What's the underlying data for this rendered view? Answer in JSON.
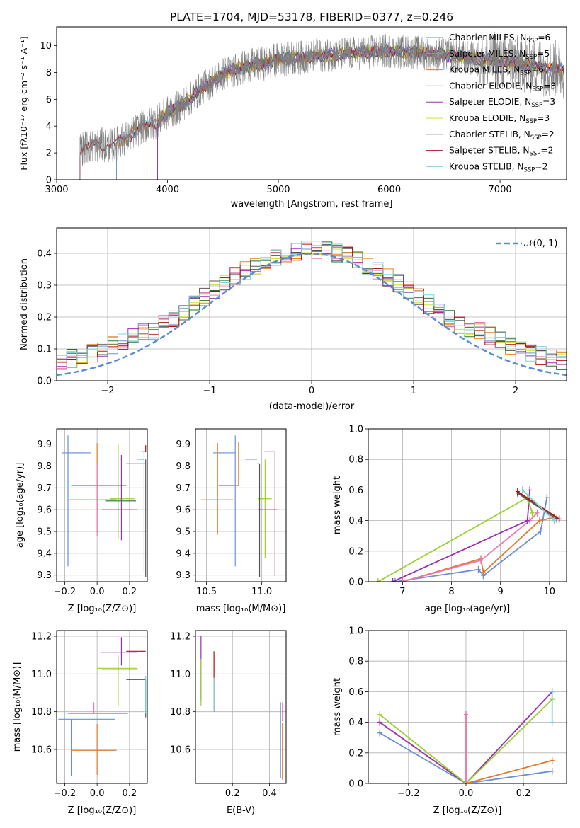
{
  "figure": {
    "title": "PLATE=1704, MJD=53178, FIBERID=0377, z=0.246"
  },
  "colors": {
    "chabrier_miles": "#6a8fd8",
    "salpeter_miles": "#e8841f",
    "kroupa_miles": "#e07a2e",
    "chabrier_elodie": "#2e6b3a",
    "salpeter_elodie": "#9b30b0",
    "kroupa_elodie": "#d4e02a",
    "chabrier_stelib": "#555555",
    "salpeter_stelib": "#b01010",
    "kroupa_stelib": "#7fd0d8",
    "pink": "#ec7bb4",
    "lightgreen": "#9bd12e",
    "gauss": "#5b8ad6",
    "grid": "#b0b0b0",
    "spectrum": "#808080"
  },
  "legend_spectrum": [
    {
      "label": "Chabrier MILES, N",
      "sub": "SSP",
      "tail": "=6",
      "color": "#6a8fd8"
    },
    {
      "label": "Salpeter MILES, N",
      "sub": "SSP",
      "tail": "=5",
      "color": "#e8841f"
    },
    {
      "label": "Kroupa MILES, N",
      "sub": "SSP",
      "tail": "=6",
      "color": "#e07a2e"
    },
    {
      "label": "Chabrier ELODIE, N",
      "sub": "SSP",
      "tail": "=3",
      "color": "#2e6b3a"
    },
    {
      "label": "Salpeter ELODIE, N",
      "sub": "SSP",
      "tail": "=3",
      "color": "#9b30b0"
    },
    {
      "label": "Kroupa ELODIE, N",
      "sub": "SSP",
      "tail": "=3",
      "color": "#d4e02a"
    },
    {
      "label": "Chabrier STELIB, N",
      "sub": "SSP",
      "tail": "=2",
      "color": "#555555"
    },
    {
      "label": "Salpeter STELIB, N",
      "sub": "SSP",
      "tail": "=2",
      "color": "#b01010"
    },
    {
      "label": "Kroupa STELIB, N",
      "sub": "SSP",
      "tail": "=2",
      "color": "#7fd0d8"
    }
  ],
  "legend_hist": {
    "label": "𝒩(0, 1)"
  },
  "chart_data": [
    {
      "id": "spectrum",
      "type": "line",
      "xlabel": "wavelength [Angstrom, rest frame]",
      "ylabel": "Flux [f",
      "ylabel_full": "Flux [fλ10⁻¹⁷ erg cm⁻² s⁻¹ A⁻¹]",
      "xlim": [
        3000,
        7600
      ],
      "ylim": [
        0,
        11.4
      ],
      "xticks": [
        3000,
        4000,
        5000,
        6000,
        7000
      ],
      "yticks": [
        0,
        2,
        4,
        6,
        8,
        10
      ],
      "continuum": {
        "x": [
          3210,
          3300,
          3400,
          3500,
          3600,
          3700,
          3800,
          3900,
          4000,
          4100,
          4200,
          4300,
          4400,
          4500,
          4600,
          4700,
          4800,
          4900,
          5000,
          5200,
          5400,
          5600,
          5800,
          6000,
          6200,
          6400,
          6600,
          6800,
          7000,
          7200,
          7400,
          7580
        ],
        "y": [
          2.3,
          2.5,
          2.6,
          2.55,
          3.0,
          3.6,
          4.0,
          4.3,
          5.0,
          5.4,
          6.0,
          6.8,
          7.3,
          7.9,
          8.2,
          8.4,
          8.6,
          8.7,
          9.0,
          9.1,
          9.3,
          9.4,
          9.5,
          9.6,
          9.5,
          9.4,
          9.2,
          9.0,
          8.9,
          8.6,
          8.4,
          8.2
        ]
      }
    },
    {
      "id": "residual-hist",
      "type": "step",
      "xlabel": "(data-model)/error",
      "ylabel": "Normed distribution",
      "xlim": [
        -2.5,
        2.5
      ],
      "ylim": [
        0,
        0.48
      ],
      "xticks": [
        -2,
        -1,
        0,
        1,
        2
      ],
      "yticks": [
        0.0,
        0.1,
        0.2,
        0.3,
        0.4
      ],
      "bin_width": 0.1
    },
    {
      "id": "age-vs-z",
      "type": "errorbar",
      "xlabel": "Z [log₁₀(Z/Z⊙)]",
      "ylabel": "age  [log₁₀(age/yr)]",
      "xlim": [
        -0.25,
        0.31
      ],
      "ylim": [
        9.27,
        9.97
      ],
      "xticks": [
        -0.2,
        0.0,
        0.2
      ],
      "yticks": [
        9.3,
        9.4,
        9.5,
        9.6,
        9.7,
        9.8,
        9.9
      ],
      "points": [
        {
          "x": -0.18,
          "xerr": [
            0.04,
            0.14
          ],
          "y": 9.86,
          "yerr": [
            0.52,
            0.08
          ],
          "color": "#6a8fd8"
        },
        {
          "x": -0.12,
          "xerr": [
            0.04,
            0.04
          ],
          "y": 9.86,
          "yerr": [
            0.0,
            0.0
          ],
          "color": "#6a8fd8"
        },
        {
          "x": 0.0,
          "xerr": [
            0.17,
            0.12
          ],
          "y": 9.645,
          "yerr": [
            0.15,
            0.26
          ],
          "color": "#e07a2e"
        },
        {
          "x": 0.0,
          "xerr": [
            0.16,
            0.18
          ],
          "y": 9.71,
          "yerr": [
            0.23,
            0.1
          ],
          "color": "#ec7bb4"
        },
        {
          "x": 0.13,
          "xerr": [
            0.05,
            0.1
          ],
          "y": 9.65,
          "yerr": [
            0.18,
            0.25
          ],
          "color": "#9bd12e"
        },
        {
          "x": 0.13,
          "xerr": [
            0.08,
            0.11
          ],
          "y": 9.64,
          "yerr": [
            0.0,
            0.0
          ],
          "color": "#2e6b3a"
        },
        {
          "x": 0.15,
          "xerr": [
            0.12,
            0.1
          ],
          "y": 9.6,
          "yerr": [
            0.14,
            0.25
          ],
          "color": "#9b30b0"
        },
        {
          "x": 0.3,
          "xerr": [
            0.12,
            0.0
          ],
          "y": 9.81,
          "yerr": [
            0.52,
            0.02
          ],
          "color": "#555555"
        },
        {
          "x": 0.3,
          "xerr": [
            0.03,
            0.0
          ],
          "y": 9.865,
          "yerr": [
            0.0,
            0.03
          ],
          "color": "#b01010"
        },
        {
          "x": 0.29,
          "xerr": [
            0.04,
            0.0
          ],
          "y": 9.83,
          "yerr": [
            0.52,
            0.04
          ],
          "color": "#7fd0d8"
        }
      ]
    },
    {
      "id": "age-vs-mass",
      "type": "errorbar",
      "xlabel": "mass [log₁₀(M/M⊙)]",
      "xlim": [
        10.4,
        11.22
      ],
      "ylim": [
        9.27,
        9.97
      ],
      "xticks": [
        10.5,
        11.0
      ],
      "yticks": [
        9.3,
        9.4,
        9.5,
        9.6,
        9.7,
        9.8,
        9.9
      ],
      "points": [
        {
          "x": 10.76,
          "xerr": [
            0.2,
            0.0
          ],
          "y": 9.86,
          "yerr": [
            0.52,
            0.08
          ],
          "color": "#6a8fd8"
        },
        {
          "x": 10.6,
          "xerr": [
            0.15,
            0.14
          ],
          "y": 9.645,
          "yerr": [
            0.16,
            0.26
          ],
          "color": "#e07a2e"
        },
        {
          "x": 10.79,
          "xerr": [
            0.0,
            0.0
          ],
          "y": 9.71,
          "yerr": [
            0.0,
            0.2
          ],
          "color": "#e07a2e"
        },
        {
          "x": 10.79,
          "xerr": [
            0.18,
            0.0
          ],
          "y": 9.71,
          "yerr": [
            0.0,
            0.0
          ],
          "color": "#ec7bb4"
        },
        {
          "x": 10.96,
          "xerr": [
            0.11,
            0.0
          ],
          "y": 9.83,
          "yerr": [
            0.0,
            0.0
          ],
          "color": "#7fd0d8"
        },
        {
          "x": 11.03,
          "xerr": [
            0.06,
            0.06
          ],
          "y": 9.65,
          "yerr": [
            0.27,
            0.18
          ],
          "color": "#9bd12e"
        },
        {
          "x": 11.1,
          "xerr": [
            0.13,
            0.04
          ],
          "y": 9.6,
          "yerr": [
            0.0,
            0.0
          ],
          "color": "#9b30b0"
        },
        {
          "x": 10.98,
          "xerr": [
            0.02,
            0.0
          ],
          "y": 9.81,
          "yerr": [
            0.52,
            0.0
          ],
          "color": "#555555"
        },
        {
          "x": 11.12,
          "xerr": [
            0.1,
            0.0
          ],
          "y": 9.865,
          "yerr": [
            0.57,
            0.0
          ],
          "color": "#b01010"
        }
      ]
    },
    {
      "id": "mass-weight-vs-age",
      "type": "line",
      "xlabel": "age  [log₁₀(age/yr)]",
      "ylabel": "mass weight",
      "xlim": [
        6.3,
        10.35
      ],
      "ylim": [
        0,
        1.0
      ],
      "xticks": [
        7,
        8,
        9,
        10
      ],
      "yticks": [
        0.0,
        0.2,
        0.4,
        0.6,
        0.8,
        1.0
      ],
      "series": [
        {
          "color": "#6a8fd8",
          "x": [
            6.85,
            8.55,
            8.65,
            9.82,
            9.95
          ],
          "y": [
            0.0,
            0.08,
            0.04,
            0.33,
            0.55
          ]
        },
        {
          "color": "#e07a2e",
          "x": [
            7.0,
            8.6,
            8.65,
            9.8,
            10.1
          ],
          "y": [
            0.0,
            0.15,
            0.06,
            0.4,
            0.42
          ]
        },
        {
          "color": "#ec7bb4",
          "x": [
            7.0,
            8.6,
            9.6,
            9.75
          ],
          "y": [
            0.0,
            0.14,
            0.4,
            0.45
          ]
        },
        {
          "color": "#9b30b0",
          "x": [
            6.8,
            9.55,
            9.6
          ],
          "y": [
            0.0,
            0.4,
            0.6
          ]
        },
        {
          "color": "#9bd12e",
          "x": [
            6.5,
            9.55,
            9.65
          ],
          "y": [
            0.0,
            0.55,
            0.45
          ]
        },
        {
          "color": "#555555",
          "x": [
            9.35,
            10.15
          ],
          "y": [
            0.58,
            0.41
          ]
        },
        {
          "color": "#b01010",
          "x": [
            9.35,
            10.2
          ],
          "y": [
            0.59,
            0.41
          ]
        },
        {
          "color": "#7fd0d8",
          "x": [
            9.45,
            10.1
          ],
          "y": [
            0.6,
            0.4
          ]
        }
      ]
    },
    {
      "id": "mass-vs-z",
      "type": "errorbar",
      "xlabel": "Z [log₁₀(Z/Z⊙)]",
      "ylabel": "mass [log₁₀(M/M⊙)]",
      "xlim": [
        -0.25,
        0.31
      ],
      "ylim": [
        10.42,
        11.23
      ],
      "xticks": [
        -0.2,
        0.0,
        0.2
      ],
      "yticks": [
        10.6,
        10.8,
        11.0,
        11.2
      ],
      "points": [
        {
          "x": -0.16,
          "xerr": [
            0.08,
            0.27
          ],
          "y": 10.76,
          "yerr": [
            0.3,
            0.0
          ],
          "color": "#6a8fd8"
        },
        {
          "x": 0.0,
          "xerr": [
            0.16,
            0.12
          ],
          "y": 10.595,
          "yerr": [
            0.13,
            0.14
          ],
          "color": "#e07a2e"
        },
        {
          "x": -0.02,
          "xerr": [
            0.16,
            0.21
          ],
          "y": 10.79,
          "yerr": [
            0.0,
            0.06
          ],
          "color": "#ec7bb4"
        },
        {
          "x": 0.13,
          "xerr": [
            0.13,
            0.12
          ],
          "y": 11.03,
          "yerr": [
            0.2,
            0.07
          ],
          "color": "#9bd12e"
        },
        {
          "x": 0.13,
          "xerr": [
            0.1,
            0.12
          ],
          "y": 11.025,
          "yerr": [
            0.0,
            0.0
          ],
          "color": "#2e6b3a"
        },
        {
          "x": 0.15,
          "xerr": [
            0.13,
            0.1
          ],
          "y": 11.115,
          "yerr": [
            0.07,
            0.08
          ],
          "color": "#9b30b0"
        },
        {
          "x": 0.3,
          "xerr": [
            0.12,
            0.0
          ],
          "y": 10.97,
          "yerr": [
            0.2,
            0.0
          ],
          "color": "#555555"
        },
        {
          "x": 0.3,
          "xerr": [
            0.12,
            0.0
          ],
          "y": 11.12,
          "yerr": [
            0.0,
            0.0
          ],
          "color": "#b01010"
        },
        {
          "x": 0.3,
          "xerr": [
            0.0,
            0.0
          ],
          "y": 10.99,
          "yerr": [
            0.2,
            0.0
          ],
          "color": "#7fd0d8"
        }
      ]
    },
    {
      "id": "mass-vs-ebv",
      "type": "errorbar",
      "xlabel": "E(B-V)",
      "xlim": [
        0.0,
        0.49
      ],
      "ylim": [
        10.42,
        11.23
      ],
      "xticks": [
        0.2,
        0.4
      ],
      "yticks": [
        10.6,
        10.8,
        11.0,
        11.2
      ],
      "points": [
        {
          "x": 0.03,
          "xerr": [
            0.0,
            0.0
          ],
          "y": 11.1,
          "yerr": [
            0.24,
            0.1
          ],
          "color": "#9b30b0"
        },
        {
          "x": 0.03,
          "xerr": [
            0.0,
            0.0
          ],
          "y": 11.0,
          "yerr": [
            0.17,
            0.08
          ],
          "color": "#9bd12e"
        },
        {
          "x": 0.1,
          "xerr": [
            0.0,
            0.0
          ],
          "y": 11.0,
          "yerr": [
            0.2,
            0.12
          ],
          "color": "#b01010"
        },
        {
          "x": 0.1,
          "xerr": [
            0.0,
            0.0
          ],
          "y": 10.98,
          "yerr": [
            0.18,
            0.0
          ],
          "color": "#7fd0d8"
        },
        {
          "x": 0.46,
          "xerr": [
            0.0,
            0.0
          ],
          "y": 10.75,
          "yerr": [
            0.3,
            0.1
          ],
          "color": "#6a8fd8"
        },
        {
          "x": 0.47,
          "xerr": [
            0.0,
            0.0
          ],
          "y": 10.6,
          "yerr": [
            0.16,
            0.14
          ],
          "color": "#e07a2e"
        },
        {
          "x": 0.47,
          "xerr": [
            0.0,
            0.0
          ],
          "y": 10.75,
          "yerr": [
            0.0,
            0.1
          ],
          "color": "#ec7bb4"
        }
      ]
    },
    {
      "id": "mass-weight-vs-z",
      "type": "line",
      "xlabel": "Z [log₁₀(Z/Z⊙)]",
      "ylabel": "mass weight",
      "xlim": [
        -0.34,
        0.35
      ],
      "ylim": [
        0,
        1.0
      ],
      "xticks": [
        -0.2,
        0.0,
        0.2
      ],
      "yticks": [
        0.0,
        0.2,
        0.4,
        0.6,
        0.8,
        1.0
      ],
      "series": [
        {
          "color": "#6a8fd8",
          "x": [
            -0.3,
            0.0,
            0.3
          ],
          "y": [
            0.33,
            0.0,
            0.08
          ]
        },
        {
          "color": "#e07a2e",
          "x": [
            -0.3,
            0.0,
            0.3
          ],
          "y": [
            0.4,
            0.0,
            0.15
          ]
        },
        {
          "color": "#9b30b0",
          "x": [
            -0.3,
            0.0,
            0.3
          ],
          "y": [
            0.4,
            0.0,
            0.6
          ]
        },
        {
          "color": "#9bd12e",
          "x": [
            -0.3,
            0.0,
            0.3
          ],
          "y": [
            0.45,
            0.0,
            0.55
          ]
        },
        {
          "color": "#7fd0d8",
          "x": [
            0.3,
            0.3
          ],
          "y": [
            0.4,
            0.6
          ]
        },
        {
          "color": "#e8841f",
          "x": [
            0.0,
            0.0
          ],
          "y": [
            0.0,
            0.45
          ]
        },
        {
          "color": "#ec7bb4",
          "x": [
            0.0,
            0.0
          ],
          "y": [
            0.0,
            0.45
          ]
        }
      ]
    }
  ]
}
